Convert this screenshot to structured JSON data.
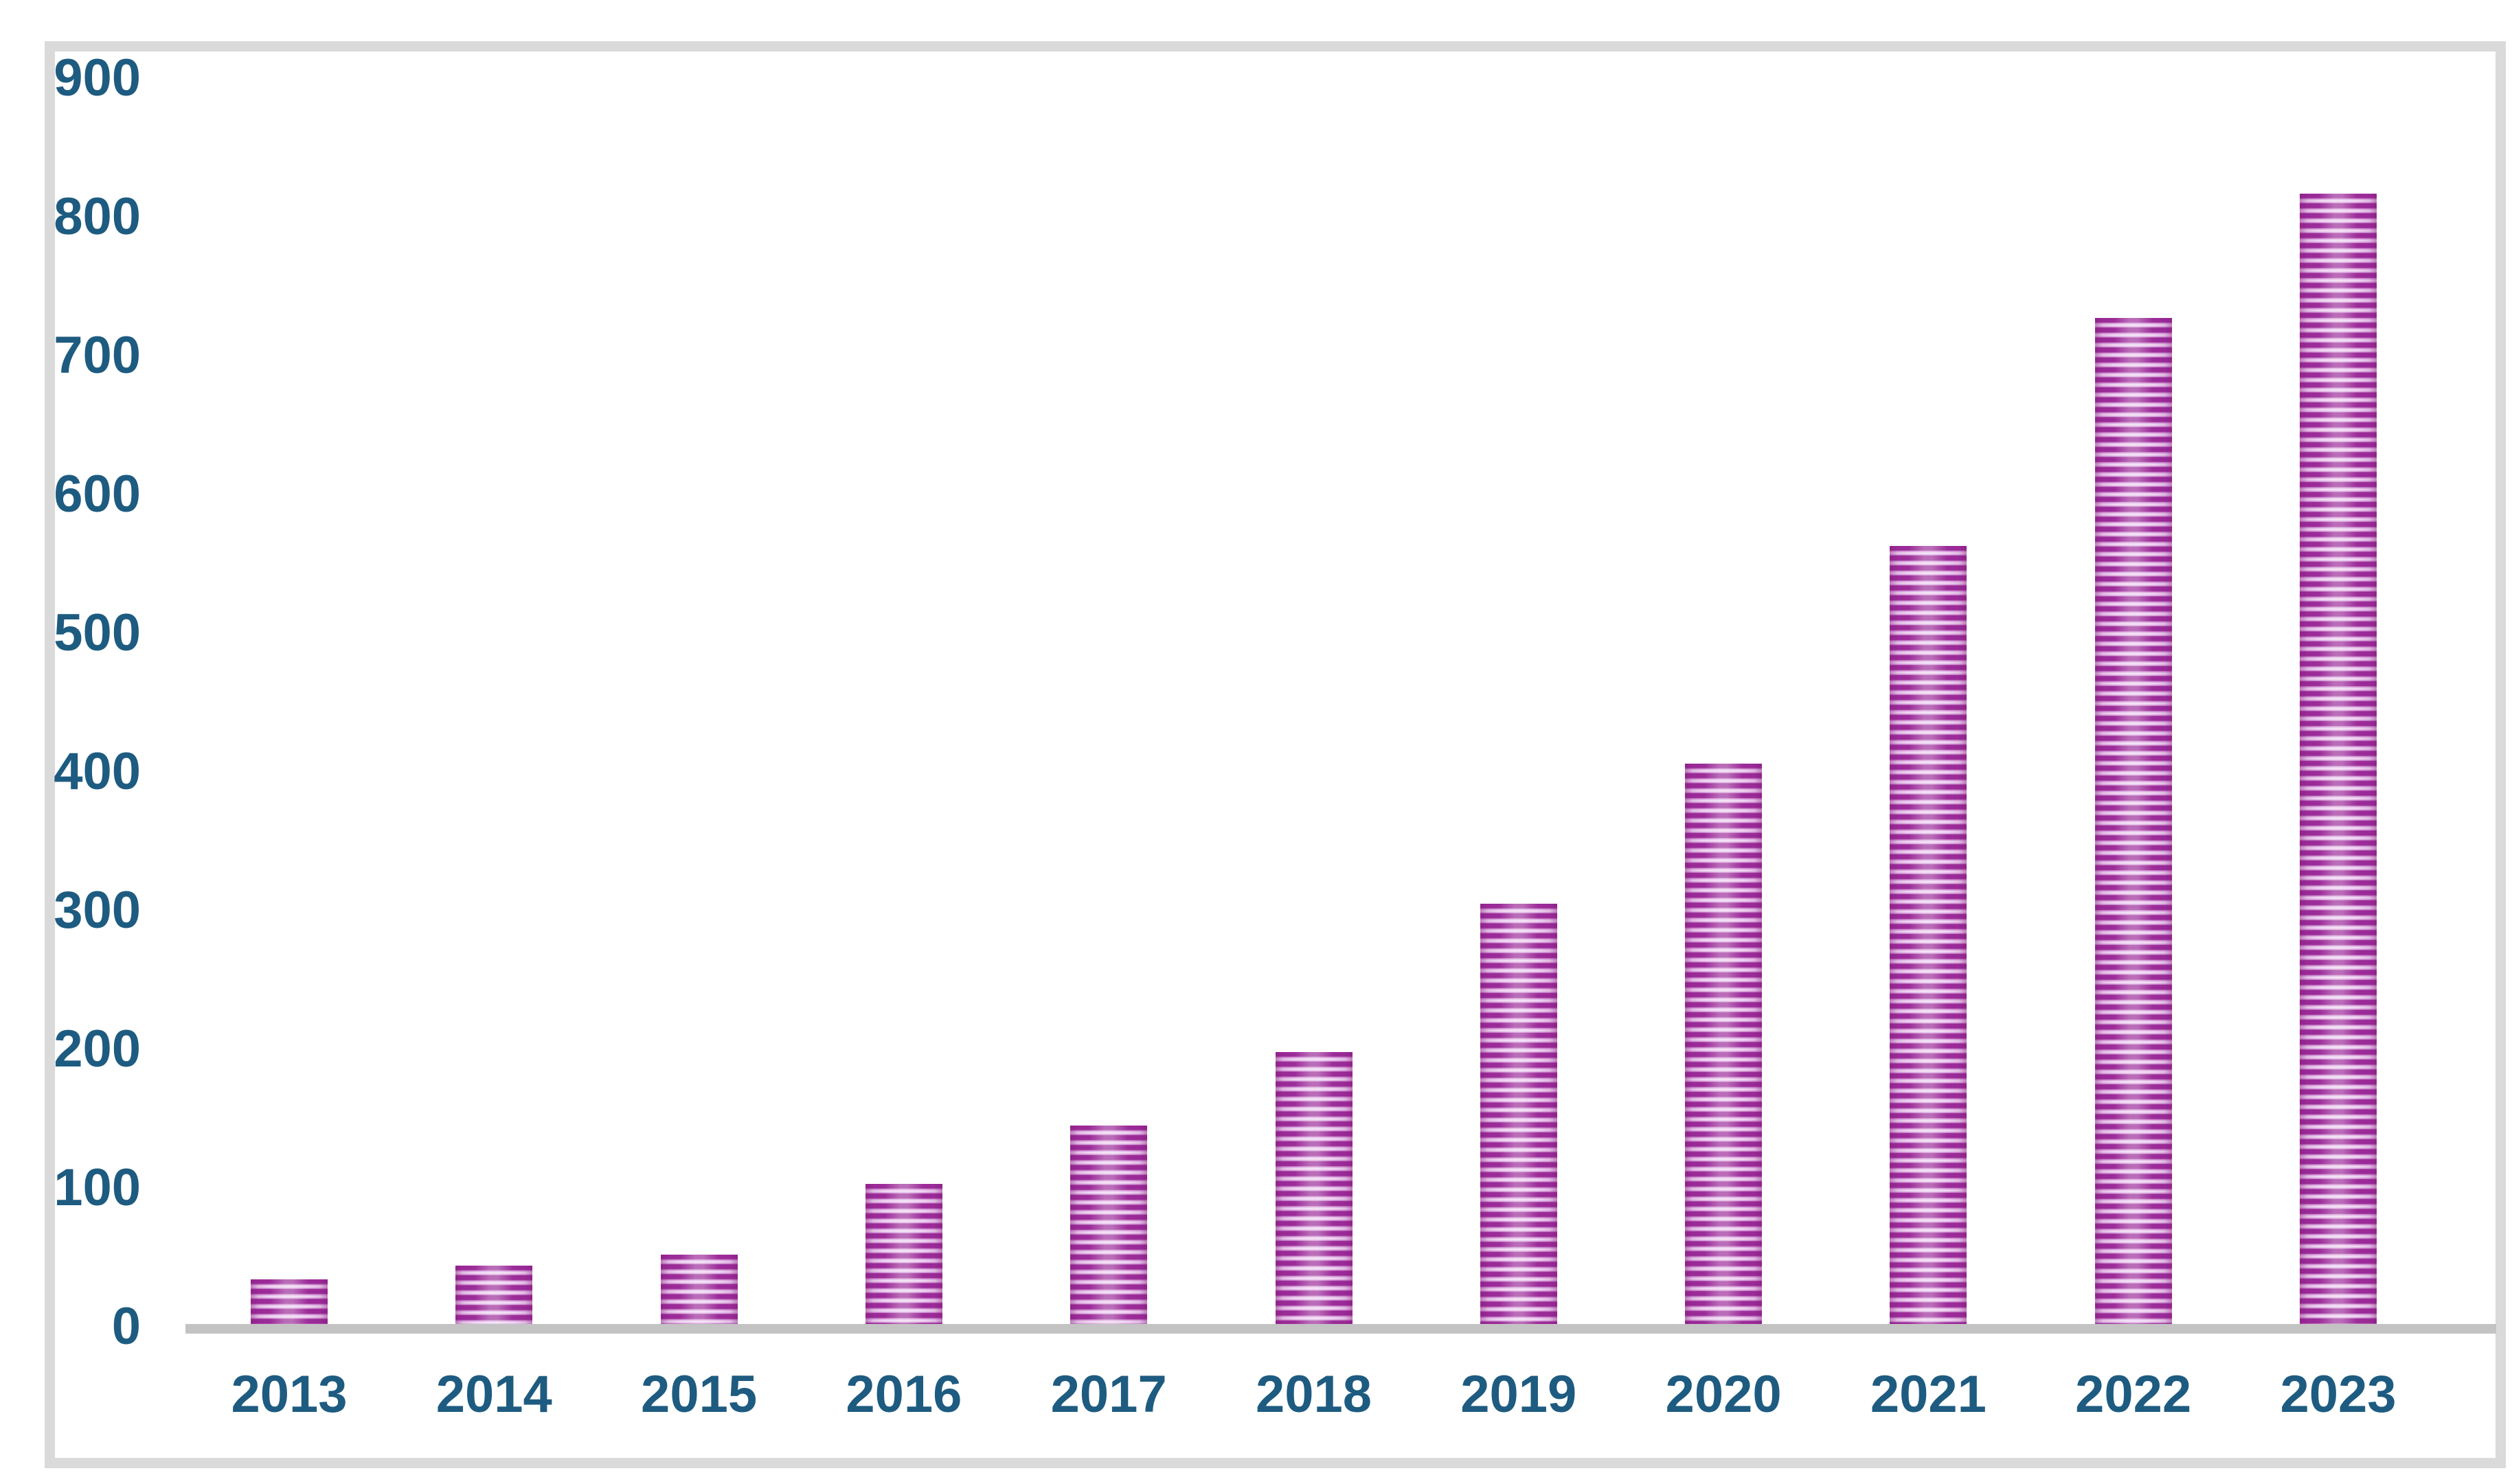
{
  "colors": {
    "label": "#1E5B80",
    "frame": "#DADADA",
    "axis_line": "#C3C3C3",
    "bar_dark": "#9C2C99",
    "bar_mid": "#DCA8E0",
    "bar_light": "#F4E2F6",
    "background": "#FFFFFF"
  },
  "chart_data": {
    "type": "bar",
    "title": "",
    "xlabel": "",
    "ylabel": "",
    "categories": [
      "2013",
      "2014",
      "2015",
      "2016",
      "2017",
      "2018",
      "2019",
      "2020",
      "2021",
      "2022",
      "2023"
    ],
    "values": [
      34,
      44,
      52,
      103,
      145,
      198,
      305,
      406,
      563,
      727,
      817
    ],
    "ylim": [
      0,
      900
    ],
    "yticks": [
      0,
      100,
      200,
      300,
      400,
      500,
      600,
      700,
      800,
      900
    ],
    "grid": false,
    "legend": null,
    "bar_style": "horizontal-striped-magenta"
  }
}
